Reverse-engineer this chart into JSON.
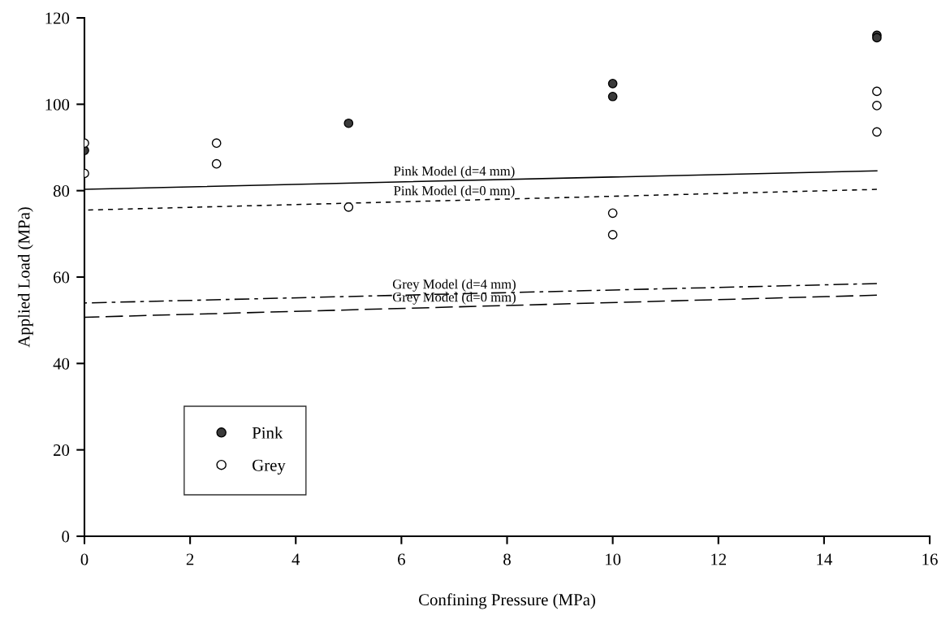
{
  "chart_data": {
    "type": "scatter",
    "xlabel": "Confining Pressure (MPa)",
    "ylabel": "Applied Load (MPa)",
    "xlim": [
      0,
      16
    ],
    "ylim": [
      0,
      120
    ],
    "xticks": [
      0,
      2,
      4,
      6,
      8,
      10,
      12,
      14,
      16
    ],
    "yticks": [
      0,
      20,
      40,
      60,
      80,
      100,
      120
    ],
    "grid": false,
    "legend": "bottom left",
    "series": [
      {
        "name": "Pink",
        "marker": "circle",
        "color": "#3a3a3a",
        "x": [
          0,
          5,
          10,
          10,
          15,
          15
        ],
        "values": [
          89.3,
          95.6,
          104.8,
          101.8,
          116,
          115.4
        ]
      },
      {
        "name": "Grey",
        "marker": "circle",
        "color": "#ffffff",
        "x": [
          0,
          0,
          2.5,
          2.5,
          5,
          10,
          10,
          15,
          15,
          15
        ],
        "values": [
          91,
          84,
          91,
          86.2,
          76.2,
          74.8,
          69.8,
          103,
          99.7,
          93.6
        ]
      },
      {
        "name": "Pink Model (d=4 mm)",
        "type": "line",
        "line_style": "solid",
        "color": "#000000",
        "x": [
          0,
          15
        ],
        "values": [
          80.3,
          84.6
        ]
      },
      {
        "name": "Pink Model (d=0 mm)",
        "type": "line",
        "line_style": "dashed",
        "color": "#000000",
        "x": [
          0,
          15
        ],
        "values": [
          75.5,
          80.3
        ]
      },
      {
        "name": "Grey Model (d=4 mm)",
        "type": "line",
        "line_style": "dashdot",
        "color": "#000000",
        "x": [
          0,
          15
        ],
        "values": [
          54,
          58.5
        ]
      },
      {
        "name": "Grey Model (d=0 mm)",
        "type": "line",
        "line_style": "longdash",
        "color": "#000000",
        "x": [
          0,
          15
        ],
        "values": [
          50.7,
          55.8
        ]
      }
    ]
  }
}
